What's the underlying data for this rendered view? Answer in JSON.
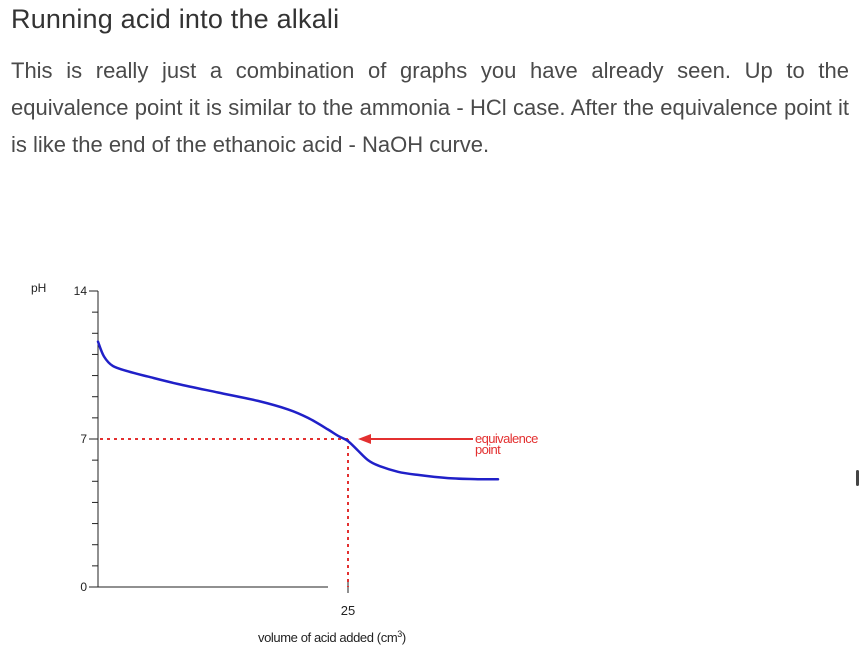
{
  "heading": "Running acid into the alkali",
  "paragraph": "This is really just a combination of graphs you have already seen. Up to the equivalence point it is similar to the ammonia - HCl case. After the equivalence point it is like the end of the ethanoic acid - NaOH curve.",
  "chart_data": {
    "type": "line",
    "title": "",
    "ylabel": "pH",
    "xlabel": "volume of acid added (cm",
    "xlabel_superscript": "3",
    "xlabel_close": ")",
    "ylim": [
      0,
      14
    ],
    "xlim": [
      0,
      40
    ],
    "y_ticks_labeled": [
      {
        "value": 14,
        "label": "14"
      },
      {
        "value": 7,
        "label": "7"
      },
      {
        "value": 0,
        "label": "0"
      }
    ],
    "y_minor_tick_step": 1,
    "x_ticks_labeled": [
      {
        "value": 25,
        "label": "25"
      }
    ],
    "grid": false,
    "series": [
      {
        "color": "#2020c8",
        "x": [
          0,
          0.6,
          1.5,
          3,
          5,
          8,
          12,
          16,
          19,
          21,
          23,
          24,
          25,
          26,
          27,
          28,
          30,
          32,
          35,
          38,
          40
        ],
        "y": [
          11.6,
          10.9,
          10.45,
          10.2,
          9.95,
          9.6,
          9.2,
          8.8,
          8.4,
          8.0,
          7.45,
          7.15,
          6.9,
          6.45,
          6.0,
          5.75,
          5.45,
          5.3,
          5.15,
          5.1,
          5.1
        ]
      }
    ],
    "reference_lines": {
      "color": "#e33030",
      "y": 7,
      "x": 25
    },
    "annotation": {
      "line1": "equivalence",
      "line2": "point",
      "color": "#e33030",
      "target": {
        "x": 25,
        "y": 7
      },
      "arrow_start_x": 37.5
    }
  }
}
